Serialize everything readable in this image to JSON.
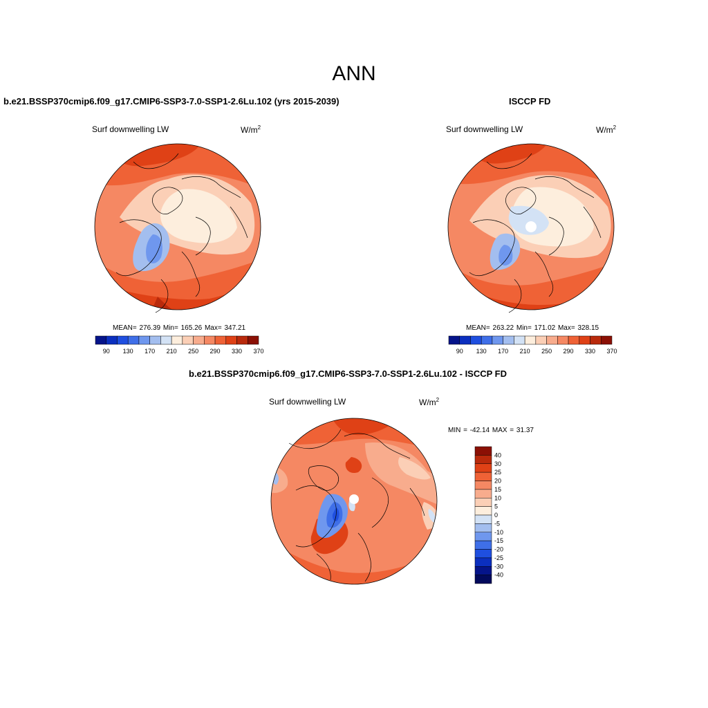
{
  "title": "ANN",
  "panels": [
    {
      "id": "model",
      "title": "b.e21.BSSP370cmip6.f09_g17.CMIP6-SSP3-7.0-SSP1-2.6Lu.102 (yrs 2015-2039)",
      "variable": "Surf downwelling LW",
      "units_base": "W/m",
      "units_exp": "2",
      "stats_text": "MEAN= 276.39  Min= 165.26  Max= 347.21"
    },
    {
      "id": "obs",
      "title": "ISCCP FD",
      "variable": "Surf downwelling LW",
      "units_base": "W/m",
      "units_exp": "2",
      "stats_text": "MEAN= 263.22  Min= 171.02  Max= 328.15"
    },
    {
      "id": "diff",
      "title": "b.e21.BSSP370cmip6.f09_g17.CMIP6-SSP3-7.0-SSP1-2.6Lu.102 - ISCCP FD",
      "variable": "Surf downwelling LW",
      "units_base": "W/m",
      "units_exp": "2",
      "stats_text": "MIN = -42.14 MAX =  31.37"
    }
  ],
  "colorbar_abs": {
    "labels": [
      "90",
      "130",
      "170",
      "210",
      "250",
      "290",
      "330",
      "370"
    ],
    "colors": [
      "#05148a",
      "#0b2fbf",
      "#1f4fe0",
      "#3f6fe8",
      "#6f97ee",
      "#a3beef",
      "#d3e2f5",
      "#fdeedd",
      "#fbcfb6",
      "#f8ac8d",
      "#f58863",
      "#ef6236",
      "#df4116",
      "#b92a0c",
      "#8b1005"
    ]
  },
  "colorbar_diff": {
    "labels": [
      "40",
      "30",
      "25",
      "20",
      "15",
      "10",
      "5",
      "0",
      "-5",
      "-10",
      "-15",
      "-20",
      "-25",
      "-30",
      "-40"
    ],
    "colors": [
      "#8b1005",
      "#b92a0c",
      "#df4116",
      "#ef6236",
      "#f58863",
      "#f8ac8d",
      "#fbcfb6",
      "#fdeedd",
      "#d3e2f5",
      "#a3beef",
      "#6f97ee",
      "#3f6fe8",
      "#1f4fe0",
      "#0b2fbf",
      "#05148a",
      "#020a5c"
    ]
  }
}
